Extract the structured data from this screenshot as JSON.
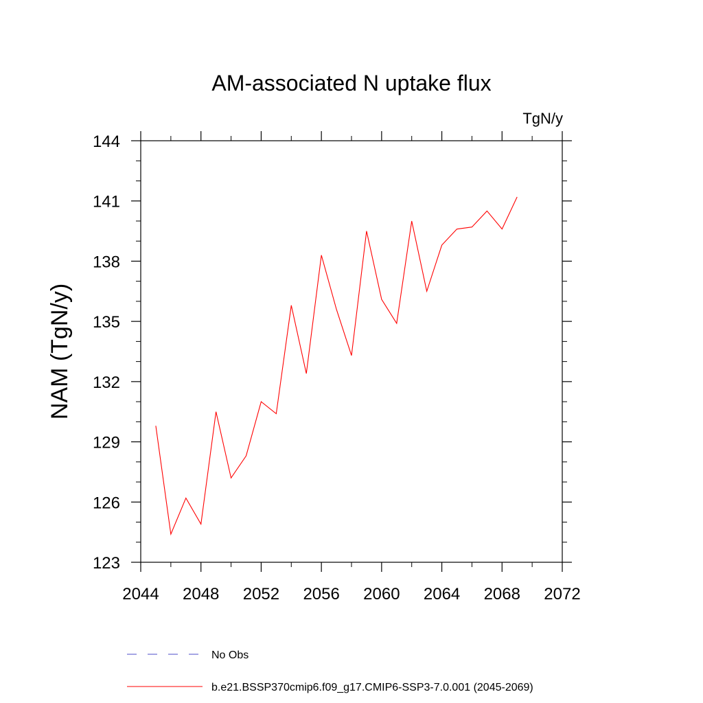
{
  "chart_data": {
    "type": "line",
    "title": "AM-associated N uptake flux",
    "units": "TgN/y",
    "xlabel": "",
    "ylabel": "NAM  (TgN/y)",
    "xlim": [
      2044,
      2072
    ],
    "ylim": [
      123,
      144
    ],
    "x_ticks": [
      2044,
      2048,
      2052,
      2056,
      2060,
      2064,
      2068,
      2072
    ],
    "y_ticks": [
      123,
      126,
      129,
      132,
      135,
      138,
      141,
      144
    ],
    "x_minor_step": 2,
    "y_minor_step": 1,
    "x_tick_labels": [
      "2044",
      "2048",
      "2052",
      "2056",
      "2060",
      "2064",
      "2068",
      "2072"
    ],
    "y_tick_labels": [
      "123",
      "126",
      "129",
      "132",
      "135",
      "138",
      "141",
      "144"
    ],
    "grid": false,
    "series": [
      {
        "name": "b.e21.BSSP370cmip6.f09_g17.CMIP6-SSP3-7.0.001 (2045-2069)",
        "color": "#ff0000",
        "x": [
          2045,
          2046,
          2047,
          2048,
          2049,
          2050,
          2051,
          2052,
          2053,
          2054,
          2055,
          2056,
          2057,
          2058,
          2059,
          2060,
          2061,
          2062,
          2063,
          2064,
          2065,
          2066,
          2067,
          2068,
          2069
        ],
        "y": [
          129.8,
          124.4,
          126.2,
          124.9,
          130.5,
          127.2,
          128.3,
          131.0,
          130.4,
          135.8,
          132.4,
          138.3,
          135.6,
          133.3,
          139.5,
          136.1,
          134.9,
          140.0,
          136.5,
          138.8,
          139.6,
          139.7,
          140.5,
          139.6,
          141.2
        ]
      }
    ],
    "legend": {
      "position": "bottom",
      "entries": [
        {
          "label": "No Obs",
          "color": "#4b4bc8",
          "style": "dashed"
        },
        {
          "label": "b.e21.BSSP370cmip6.f09_g17.CMIP6-SSP3-7.0.001 (2045-2069)",
          "color": "#ff0000",
          "style": "solid"
        }
      ]
    }
  }
}
